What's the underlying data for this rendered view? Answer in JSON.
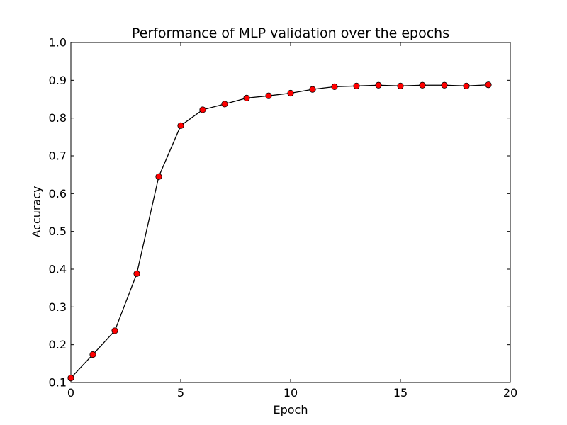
{
  "chart_data": {
    "type": "line",
    "title": "Performance of MLP validation over the epochs",
    "xlabel": "Epoch",
    "ylabel": "Accuracy",
    "xlim": [
      0,
      20
    ],
    "ylim": [
      0.1,
      1.0
    ],
    "x_ticks": [
      0,
      5,
      10,
      15,
      20
    ],
    "y_ticks": [
      0.1,
      0.2,
      0.3,
      0.4,
      0.5,
      0.6,
      0.7,
      0.8,
      0.9,
      1.0
    ],
    "x_tick_labels": [
      "0",
      "5",
      "10",
      "15",
      "20"
    ],
    "y_tick_labels": [
      "0.1",
      "0.2",
      "0.3",
      "0.4",
      "0.5",
      "0.6",
      "0.7",
      "0.8",
      "0.9",
      "1.0"
    ],
    "grid": false,
    "series": [
      {
        "line_color": "#000000",
        "marker_color": "#ff0000",
        "marker": "circle",
        "x": [
          0,
          1,
          2,
          3,
          4,
          5,
          6,
          7,
          8,
          9,
          10,
          11,
          12,
          13,
          14,
          15,
          16,
          17,
          18,
          19
        ],
        "values": [
          0.112,
          0.174,
          0.237,
          0.388,
          0.645,
          0.78,
          0.822,
          0.837,
          0.853,
          0.859,
          0.866,
          0.876,
          0.883,
          0.885,
          0.887,
          0.885,
          0.887,
          0.887,
          0.885,
          0.888
        ]
      }
    ]
  }
}
